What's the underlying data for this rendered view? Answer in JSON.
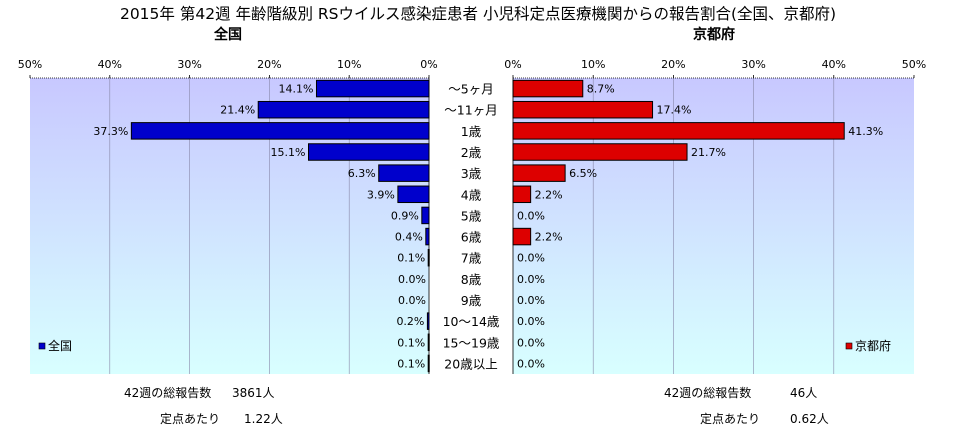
{
  "title": "2015年 第42週 年齢階級別 RSウイルス感染症患者 小児科定点医療機関からの報告割合(全国、京都府)",
  "colors": {
    "national": "#0000cc",
    "kyoto": "#dd0000",
    "plot_bg_top": "#c8c8ff",
    "plot_bg_bottom": "#d8ffff"
  },
  "chart_data": {
    "type": "bar",
    "orientation": "horizontal",
    "categories": [
      "～5ヶ月",
      "～11ヶ月",
      "1歳",
      "2歳",
      "3歳",
      "4歳",
      "5歳",
      "6歳",
      "7歳",
      "8歳",
      "9歳",
      "10～14歳",
      "15～19歳",
      "20歳以上"
    ],
    "xlim": [
      0,
      50
    ],
    "ticks": [
      "50%",
      "40%",
      "30%",
      "20%",
      "10%",
      "0%"
    ],
    "ticks_right": [
      "0%",
      "10%",
      "20%",
      "30%",
      "40%",
      "50%"
    ],
    "series": [
      {
        "name": "全国",
        "panel_title": "全国",
        "values": [
          14.1,
          21.4,
          37.3,
          15.1,
          6.3,
          3.9,
          0.9,
          0.4,
          0.1,
          0.0,
          0.0,
          0.2,
          0.1,
          0.1
        ],
        "labels": [
          "14.1%",
          "21.4%",
          "37.3%",
          "15.1%",
          "6.3%",
          "3.9%",
          "0.9%",
          "0.4%",
          "0.1%",
          "0.0%",
          "0.0%",
          "0.2%",
          "0.1%",
          "0.1%"
        ]
      },
      {
        "name": "京都府",
        "panel_title": "京都府",
        "values": [
          8.7,
          17.4,
          41.3,
          21.7,
          6.5,
          2.2,
          0.0,
          2.2,
          0.0,
          0.0,
          0.0,
          0.0,
          0.0,
          0.0
        ],
        "labels": [
          "8.7%",
          "17.4%",
          "41.3%",
          "21.7%",
          "6.5%",
          "2.2%",
          "0.0%",
          "2.2%",
          "0.0%",
          "0.0%",
          "0.0%",
          "0.0%",
          "0.0%",
          "0.0%"
        ]
      }
    ],
    "legend": "bottom-outer-corners"
  },
  "footer": {
    "national": {
      "total_label": "42週の総報告数",
      "total_value": "3861人",
      "per_site_label": "定点あたり",
      "per_site_value": "1.22人"
    },
    "kyoto": {
      "total_label": "42週の総報告数",
      "total_value": "46人",
      "per_site_label": "定点あたり",
      "per_site_value": "0.62人"
    }
  }
}
